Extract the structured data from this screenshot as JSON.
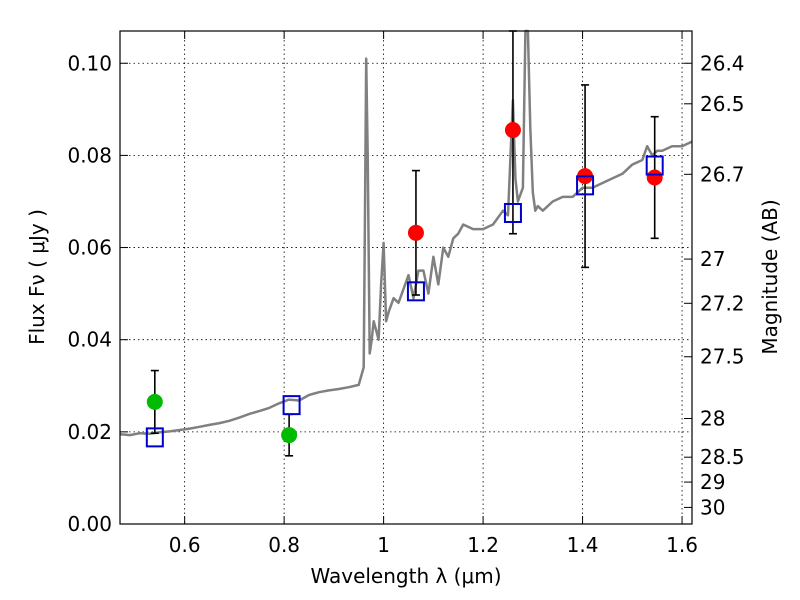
{
  "chart_data": {
    "type": "scatter",
    "xlabel": "Wavelength  λ (μm)",
    "ylabel": "Flux  Fν  ( μJy )",
    "ylabel_right": "Magnitude (AB)",
    "xlim": [
      0.47,
      1.62
    ],
    "ylim": [
      0.0,
      0.107
    ],
    "grid": true,
    "x_ticks": [
      0.6,
      0.8,
      1.0,
      1.2,
      1.4,
      1.6
    ],
    "x_tick_labels": [
      "0.6",
      "0.8",
      "1",
      "1.2",
      "1.4",
      "1.6"
    ],
    "y_ticks": [
      0.0,
      0.02,
      0.04,
      0.06,
      0.08,
      0.1
    ],
    "y_tick_labels": [
      "0.00",
      "0.02",
      "0.04",
      "0.06",
      "0.08",
      "0.10"
    ],
    "right_ticks": [
      {
        "label": "26.4",
        "flux": 0.1
      },
      {
        "label": "26.5",
        "flux": 0.0912
      },
      {
        "label": "26.7",
        "flux": 0.0759
      },
      {
        "label": "27",
        "flux": 0.0575
      },
      {
        "label": "27.2",
        "flux": 0.0479
      },
      {
        "label": "27.5",
        "flux": 0.0363
      },
      {
        "label": "28",
        "flux": 0.0229
      },
      {
        "label": "28.5",
        "flux": 0.0145
      },
      {
        "label": "29",
        "flux": 0.0091
      },
      {
        "label": "30",
        "flux": 0.0036
      }
    ],
    "model_spectrum": {
      "name": "model SED",
      "color": "#808080",
      "x": [
        0.47,
        0.49,
        0.51,
        0.53,
        0.55,
        0.57,
        0.59,
        0.61,
        0.63,
        0.65,
        0.67,
        0.69,
        0.71,
        0.73,
        0.75,
        0.77,
        0.79,
        0.81,
        0.83,
        0.85,
        0.87,
        0.89,
        0.91,
        0.93,
        0.95,
        0.96,
        0.962,
        0.965,
        0.968,
        0.972,
        0.976,
        0.98,
        0.985,
        0.99,
        0.995,
        1.0,
        1.005,
        1.01,
        1.02,
        1.03,
        1.04,
        1.05,
        1.06,
        1.07,
        1.08,
        1.09,
        1.1,
        1.11,
        1.12,
        1.13,
        1.14,
        1.15,
        1.16,
        1.18,
        1.2,
        1.22,
        1.24,
        1.25,
        1.255,
        1.26,
        1.265,
        1.27,
        1.28,
        1.285,
        1.29,
        1.295,
        1.3,
        1.305,
        1.31,
        1.32,
        1.34,
        1.36,
        1.38,
        1.4,
        1.42,
        1.44,
        1.46,
        1.48,
        1.5,
        1.52,
        1.53,
        1.54,
        1.55,
        1.56,
        1.58,
        1.6,
        1.62
      ],
      "y": [
        0.0195,
        0.0193,
        0.0197,
        0.0196,
        0.0199,
        0.0201,
        0.0204,
        0.0207,
        0.0211,
        0.0215,
        0.0219,
        0.0224,
        0.0231,
        0.0239,
        0.0245,
        0.0252,
        0.0262,
        0.027,
        0.0268,
        0.028,
        0.0286,
        0.029,
        0.0293,
        0.0297,
        0.0302,
        0.034,
        0.06,
        0.101,
        0.08,
        0.037,
        0.04,
        0.044,
        0.042,
        0.04,
        0.052,
        0.061,
        0.044,
        0.046,
        0.049,
        0.048,
        0.051,
        0.054,
        0.049,
        0.055,
        0.055,
        0.05,
        0.058,
        0.052,
        0.06,
        0.058,
        0.062,
        0.063,
        0.065,
        0.064,
        0.064,
        0.065,
        0.068,
        0.067,
        0.08,
        0.092,
        0.075,
        0.07,
        0.073,
        0.107,
        0.107,
        0.086,
        0.072,
        0.068,
        0.069,
        0.068,
        0.07,
        0.071,
        0.071,
        0.073,
        0.073,
        0.074,
        0.075,
        0.076,
        0.078,
        0.079,
        0.082,
        0.08,
        0.081,
        0.081,
        0.082,
        0.082,
        0.083
      ]
    },
    "series": [
      {
        "name": "green points",
        "color": "#00bb00",
        "marker": "circle",
        "x": [
          0.54,
          0.81
        ],
        "y": [
          0.0265,
          0.0193
        ],
        "err": [
          0.0068,
          0.0045
        ]
      },
      {
        "name": "red points",
        "color": "#ff0000",
        "marker": "circle",
        "x": [
          1.065,
          1.26,
          1.405,
          1.545
        ],
        "y": [
          0.0632,
          0.0855,
          0.0755,
          0.0752
        ],
        "err": [
          0.0135,
          0.0225,
          0.0198,
          0.0132
        ]
      },
      {
        "name": "model photometry",
        "color": "#0000cc",
        "marker": "open-square",
        "x": [
          0.54,
          0.815,
          1.065,
          1.26,
          1.405,
          1.545
        ],
        "y": [
          0.0188,
          0.0258,
          0.0505,
          0.0675,
          0.0735,
          0.0778
        ]
      }
    ]
  }
}
